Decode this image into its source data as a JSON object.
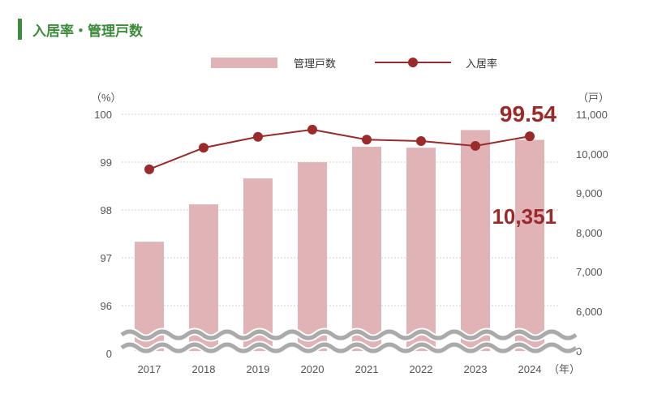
{
  "title": "入居率・管理戸数",
  "chart_data": {
    "type": "bar+line",
    "title": "入居率・管理戸数",
    "categories": [
      "2017",
      "2018",
      "2019",
      "2020",
      "2021",
      "2022",
      "2023",
      "2024"
    ],
    "x_unit": "（年）",
    "series": [
      {
        "name": "管理戸数",
        "type": "bar",
        "axis": "right",
        "color": "#e0b4b6",
        "values": [
          7760,
          8710,
          9370,
          9780,
          10175,
          10150,
          10600,
          10351
        ]
      },
      {
        "name": "入居率",
        "type": "line",
        "axis": "left",
        "color": "#9b2a2a",
        "values": [
          98.85,
          99.3,
          99.53,
          99.68,
          99.47,
          99.44,
          99.34,
          99.54
        ]
      }
    ],
    "left_axis": {
      "unit": "（%）",
      "ticks": [
        "100",
        "99",
        "98",
        "97",
        "96",
        "0"
      ],
      "range": [
        96,
        100
      ],
      "broken": true
    },
    "right_axis": {
      "unit": "（戸）",
      "ticks": [
        "11,000",
        "10,000",
        "9,000",
        "8,000",
        "7,000",
        "6,000",
        "0"
      ],
      "range": [
        6000,
        11000
      ],
      "broken": true
    },
    "annotations": [
      "99.54",
      "10,351"
    ],
    "legend": "top",
    "grid": true
  }
}
